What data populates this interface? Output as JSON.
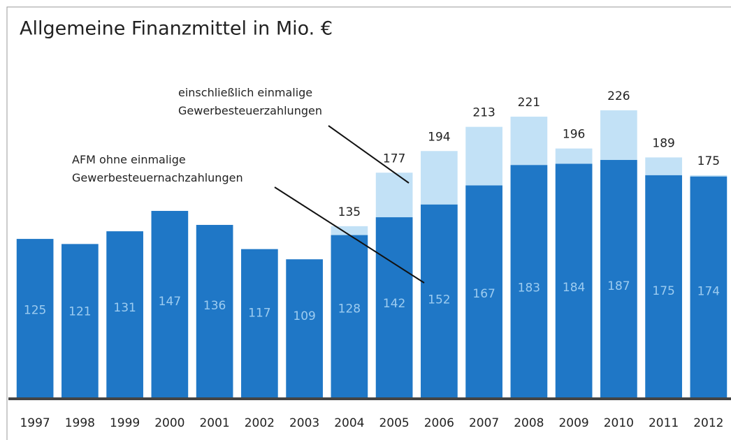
{
  "chart_data": {
    "type": "bar",
    "title": "Allgemeine Finanzmittel in Mio. €",
    "categories": [
      "1997",
      "1998",
      "1999",
      "2000",
      "2001",
      "2002",
      "2003",
      "2004",
      "2005",
      "2006",
      "2007",
      "2008",
      "2009",
      "2010",
      "2011",
      "2012"
    ],
    "series": [
      {
        "name": "einschließlich einmalige Gewerbesteuerzahlungen",
        "color": "#c2e1f6",
        "values": [
          null,
          null,
          null,
          null,
          null,
          null,
          null,
          135,
          177,
          194,
          213,
          221,
          196,
          226,
          189,
          175
        ]
      },
      {
        "name": "AFM ohne einmalige Gewerbesteuernachzahlungen",
        "color": "#1f77c6",
        "values": [
          125,
          121,
          131,
          147,
          136,
          117,
          109,
          128,
          142,
          152,
          167,
          183,
          184,
          187,
          175,
          174
        ]
      }
    ],
    "ylim": [
      0,
      300
    ]
  }
}
